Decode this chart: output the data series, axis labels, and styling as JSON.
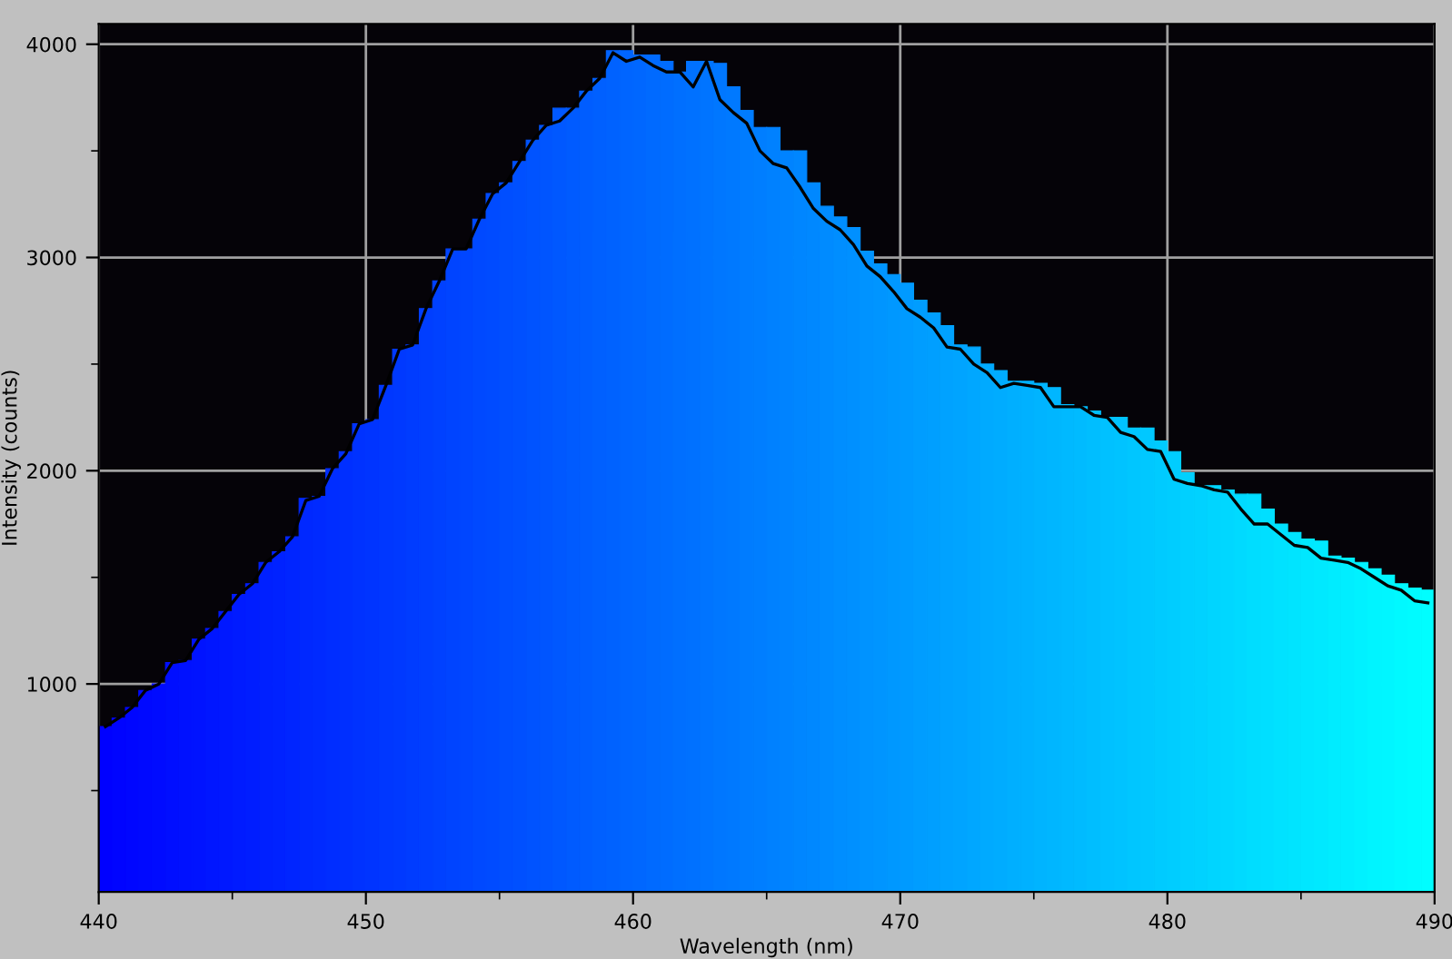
{
  "chart_data": {
    "type": "bar",
    "xlabel": "Wavelength (nm)",
    "ylabel": "Intensity (counts)",
    "xlim": [
      440,
      490
    ],
    "ylim": [
      25,
      4095
    ],
    "xticks": [
      440,
      {
        "value": 445,
        "label": null
      },
      450,
      {
        "value": 455,
        "label": null
      },
      460,
      {
        "value": 465,
        "label": null
      },
      470,
      {
        "value": 475,
        "label": null
      },
      480,
      {
        "value": 485,
        "label": null
      },
      490
    ],
    "yticks": [
      {
        "value": 500,
        "label": null
      },
      1000,
      {
        "value": 1500,
        "label": null
      },
      2000,
      {
        "value": 2500,
        "label": null
      },
      3000,
      {
        "value": 3500,
        "label": null
      },
      4000
    ],
    "grid": true,
    "legend": false,
    "x": [
      440.25,
      440.75,
      441.25,
      441.75,
      442.25,
      442.75,
      443.25,
      443.75,
      444.25,
      444.75,
      445.25,
      445.75,
      446.25,
      446.75,
      447.25,
      447.75,
      448.25,
      448.75,
      449.25,
      449.75,
      450.25,
      450.75,
      451.25,
      451.75,
      452.25,
      452.75,
      453.25,
      453.75,
      454.25,
      454.75,
      455.25,
      455.75,
      456.25,
      456.75,
      457.25,
      457.75,
      458.25,
      458.75,
      459.25,
      459.75,
      460.25,
      460.75,
      461.25,
      461.75,
      462.25,
      462.75,
      463.25,
      463.75,
      464.25,
      464.75,
      465.25,
      465.75,
      466.25,
      466.75,
      467.25,
      467.75,
      468.25,
      468.75,
      469.25,
      469.75,
      470.25,
      470.75,
      471.25,
      471.75,
      472.25,
      472.75,
      473.25,
      473.75,
      474.25,
      474.75,
      475.25,
      475.75,
      476.25,
      476.75,
      477.25,
      477.75,
      478.25,
      478.75,
      479.25,
      479.75,
      480.25,
      480.75,
      481.25,
      481.75,
      482.25,
      482.75,
      483.25,
      483.75,
      484.25,
      484.75,
      485.25,
      485.75,
      486.25,
      486.75,
      487.25,
      487.75,
      488.25,
      488.75,
      489.25,
      489.75
    ],
    "series": [
      {
        "values": [
          800,
          840,
          890,
          970,
          1000,
          1100,
          1110,
          1210,
          1260,
          1340,
          1420,
          1470,
          1570,
          1620,
          1690,
          1870,
          1880,
          2010,
          2090,
          2220,
          2240,
          2400,
          2570,
          2590,
          2760,
          2890,
          3040,
          3040,
          3180,
          3300,
          3350,
          3450,
          3550,
          3620,
          3700,
          3700,
          3780,
          3840,
          3970,
          3970,
          3950,
          3950,
          3920,
          3870,
          3920,
          3920,
          3910,
          3800,
          3690,
          3610,
          3610,
          3500,
          3500,
          3350,
          3240,
          3190,
          3140,
          3030,
          2970,
          2920,
          2880,
          2800,
          2740,
          2680,
          2590,
          2580,
          2500,
          2470,
          2420,
          2420,
          2410,
          2390,
          2310,
          2300,
          2280,
          2250,
          2250,
          2200,
          2200,
          2140,
          2090,
          1990,
          1930,
          1930,
          1910,
          1890,
          1890,
          1820,
          1750,
          1710,
          1680,
          1670,
          1600,
          1590,
          1570,
          1540,
          1510,
          1470,
          1450,
          1440
        ],
        "colors": [
          "#0001ff",
          "#0004ff",
          "#0006ff",
          "#0009ff",
          "#000bff",
          "#000eff",
          "#0011ff",
          "#0013ff",
          "#0016ff",
          "#0018ff",
          "#001bff",
          "#001dff",
          "#0020ff",
          "#0022ff",
          "#0025ff",
          "#0028ff",
          "#002aff",
          "#002dff",
          "#002fff",
          "#0032ff",
          "#0034ff",
          "#0037ff",
          "#0039ff",
          "#003cff",
          "#003eff",
          "#0041ff",
          "#0044ff",
          "#0046ff",
          "#0049ff",
          "#004bff",
          "#004eff",
          "#0050ff",
          "#0053ff",
          "#0055ff",
          "#0058ff",
          "#005bff",
          "#005dff",
          "#0060ff",
          "#0062ff",
          "#0065ff",
          "#0067ff",
          "#006aff",
          "#006cff",
          "#006fff",
          "#0071ff",
          "#0074ff",
          "#0077ff",
          "#0079ff",
          "#007cff",
          "#007eff",
          "#0081ff",
          "#0083ff",
          "#0086ff",
          "#0088ff",
          "#008bff",
          "#008eff",
          "#0090ff",
          "#0093ff",
          "#0095ff",
          "#0098ff",
          "#009aff",
          "#009dff",
          "#009fff",
          "#00a2ff",
          "#00a4ff",
          "#00a7ff",
          "#00aaff",
          "#00acff",
          "#00afff",
          "#00b1ff",
          "#00b4ff",
          "#00b6ff",
          "#00b9ff",
          "#00bbff",
          "#00beff",
          "#00c1ff",
          "#00c3ff",
          "#00c6ff",
          "#00c8ff",
          "#00cbff",
          "#00cdff",
          "#00d0ff",
          "#00d2ff",
          "#00d5ff",
          "#00d7ff",
          "#00daff",
          "#00ddff",
          "#00dfff",
          "#00e2ff",
          "#00e4ff",
          "#00e7ff",
          "#00e9ff",
          "#00ecff",
          "#00eeff",
          "#00f1ff",
          "#00f4ff",
          "#00f6ff",
          "#00f9ff",
          "#00fbff",
          "#00feff"
        ]
      },
      {
        "type": "line",
        "color": "#000000",
        "values": [
          800,
          840,
          890,
          970,
          1000,
          1100,
          1110,
          1210,
          1260,
          1340,
          1420,
          1470,
          1570,
          1620,
          1690,
          1860,
          1880,
          2010,
          2080,
          2220,
          2240,
          2400,
          2570,
          2590,
          2760,
          2890,
          3040,
          3040,
          3180,
          3300,
          3350,
          3450,
          3550,
          3620,
          3640,
          3700,
          3780,
          3840,
          3960,
          3920,
          3940,
          3900,
          3870,
          3870,
          3800,
          3920,
          3740,
          3680,
          3630,
          3500,
          3440,
          3420,
          3330,
          3230,
          3170,
          3130,
          3060,
          2960,
          2910,
          2840,
          2760,
          2720,
          2670,
          2580,
          2570,
          2500,
          2460,
          2390,
          2410,
          2400,
          2390,
          2300,
          2300,
          2300,
          2260,
          2250,
          2180,
          2160,
          2100,
          2090,
          1960,
          1940,
          1930,
          1910,
          1900,
          1820,
          1750,
          1750,
          1700,
          1650,
          1640,
          1590,
          1580,
          1570,
          1540,
          1500,
          1460,
          1440,
          1390,
          1380
        ]
      }
    ]
  }
}
